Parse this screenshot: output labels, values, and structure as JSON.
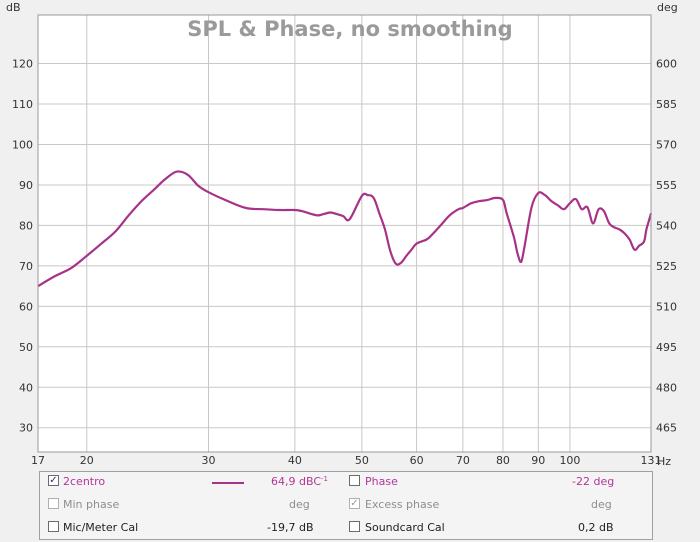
{
  "chart_data": {
    "type": "line",
    "title": "SPL & Phase, no smoothing",
    "xlabel": "Hz",
    "ylabel_left": "dB",
    "ylabel_right": "deg",
    "xscale": "log",
    "xlim": [
      17,
      131
    ],
    "ylim": [
      24,
      132
    ],
    "ylim_right": [
      456,
      618
    ],
    "grid": true,
    "x_ticks": [
      17,
      20,
      30,
      40,
      50,
      60,
      70,
      80,
      90,
      100,
      131
    ],
    "x_tick_labels": [
      "17",
      "20",
      "30",
      "40",
      "50",
      "60",
      "70",
      "80",
      "90",
      "100",
      "131"
    ],
    "x_minor_grid": [
      17,
      20,
      30,
      40,
      50,
      60,
      70,
      80,
      90,
      100
    ],
    "y_ticks": [
      30,
      40,
      50,
      60,
      70,
      80,
      90,
      100,
      110,
      120
    ],
    "y_right_tick_labels": [
      "465",
      "480",
      "495",
      "510",
      "525",
      "540",
      "555",
      "570",
      "585",
      "600"
    ],
    "colors": {
      "spl": "#a83288",
      "grid": "#c8c8c8",
      "plot_bg": "#ffffff"
    },
    "series": [
      {
        "name": "2centro",
        "x": [
          17,
          18,
          19,
          20,
          21,
          22,
          23,
          24,
          25,
          26,
          27,
          28,
          29,
          30,
          32,
          34,
          36,
          38,
          40,
          41,
          43,
          44,
          45,
          46,
          47,
          48,
          50,
          51,
          52,
          53,
          54,
          55,
          56,
          57,
          58,
          59,
          60,
          62,
          63,
          65,
          67,
          69,
          70,
          72,
          74,
          76,
          78,
          80,
          81,
          83,
          84,
          85,
          86,
          88,
          90,
          92,
          94,
          96,
          98,
          100,
          102,
          104,
          106,
          108,
          110,
          112,
          114,
          116,
          118,
          120,
          122,
          124,
          126,
          128,
          129,
          130,
          131
        ],
        "values": [
          65,
          67.5,
          69.5,
          72.5,
          75.5,
          78.5,
          82.5,
          86,
          88.8,
          91.5,
          93.3,
          92.5,
          89.8,
          88.2,
          86,
          84.3,
          84,
          83.8,
          83.8,
          83.5,
          82.5,
          82.8,
          83.2,
          82.8,
          82.3,
          81.5,
          87.3,
          87.5,
          86.8,
          83,
          79,
          73.5,
          70.5,
          70.8,
          72.5,
          74,
          75.5,
          76.5,
          77.5,
          80,
          82.5,
          84,
          84.3,
          85.5,
          86,
          86.3,
          86.8,
          86.3,
          83,
          77,
          73,
          71,
          75,
          84.5,
          88,
          87.5,
          86,
          85,
          84,
          85.5,
          86.5,
          84,
          84.5,
          80.5,
          84,
          83.5,
          80.5,
          79.5,
          79,
          78,
          76.5,
          74,
          75,
          76,
          79,
          81,
          83
        ]
      }
    ]
  },
  "legend": {
    "row1": {
      "check1": "✓",
      "name": "2centro",
      "value": "64,9 dBC",
      "value_sup": "-1",
      "phase_label": "Phase",
      "phase_value": "-22 deg"
    },
    "row2": {
      "min_phase_label": "Min phase",
      "min_phase_unit": "deg",
      "check2": "✓",
      "excess_phase_label": "Excess phase",
      "excess_phase_unit": "deg"
    },
    "row3": {
      "mic_label": "Mic/Meter Cal",
      "mic_value": "-19,7 dB",
      "sound_label": "Soundcard Cal",
      "sound_value": "0,2 dB"
    }
  }
}
